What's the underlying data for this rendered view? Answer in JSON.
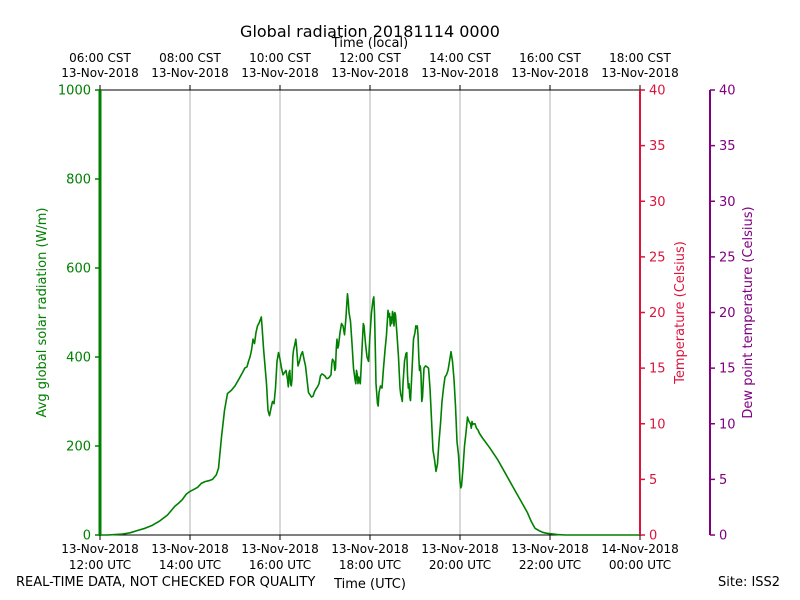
{
  "page": {
    "title": "Global radiation 20181114 0000",
    "footer_note": "REAL-TIME DATA, NOT CHECKED FOR QUALITY",
    "site": "Site: ISS2"
  },
  "chart_data": {
    "type": "line",
    "title": "Global radiation 20181114 0000",
    "xlabel": "Time (UTC)",
    "x2label": "Time (local)",
    "x_range": [
      "2018-11-13 12:00",
      "2018-11-14 00:00"
    ],
    "x_ticks_utc": [
      [
        "13-Nov-2018",
        "12:00 UTC"
      ],
      [
        "13-Nov-2018",
        "14:00 UTC"
      ],
      [
        "13-Nov-2018",
        "16:00 UTC"
      ],
      [
        "13-Nov-2018",
        "18:00 UTC"
      ],
      [
        "13-Nov-2018",
        "20:00 UTC"
      ],
      [
        "13-Nov-2018",
        "22:00 UTC"
      ],
      [
        "14-Nov-2018",
        "00:00 UTC"
      ]
    ],
    "x_ticks_local": [
      [
        "06:00 CST",
        "13-Nov-2018"
      ],
      [
        "08:00 CST",
        "13-Nov-2018"
      ],
      [
        "10:00 CST",
        "13-Nov-2018"
      ],
      [
        "12:00 CST",
        "13-Nov-2018"
      ],
      [
        "14:00 CST",
        "13-Nov-2018"
      ],
      [
        "16:00 CST",
        "13-Nov-2018"
      ],
      [
        "18:00 CST",
        "13-Nov-2018"
      ]
    ],
    "grid": "vertical",
    "axes": {
      "y_left": {
        "label": "Avg global solar radiation (W/m)",
        "range": [
          0,
          1000
        ],
        "ticks": [
          "0",
          "200",
          "400",
          "600",
          "800",
          "1000"
        ],
        "color": "#008000"
      },
      "y_right1": {
        "label": "Temperature (Celsius)",
        "range": [
          0,
          40
        ],
        "ticks": [
          "0",
          "5",
          "10",
          "15",
          "20",
          "25",
          "30",
          "35",
          "40"
        ],
        "color": "#dc143c"
      },
      "y_right2": {
        "label": "Dew point temperature (Celsius)",
        "range": [
          0,
          40
        ],
        "ticks": [
          "0",
          "5",
          "10",
          "15",
          "20",
          "25",
          "30",
          "35",
          "40"
        ],
        "color": "#800080"
      }
    },
    "series": [
      {
        "color": "#008000",
        "axis": "y_left",
        "points": [
          [
            "12:00",
            0
          ],
          [
            "12:10",
            0
          ],
          [
            "12:20",
            1
          ],
          [
            "12:30",
            2
          ],
          [
            "12:40",
            5
          ],
          [
            "12:50",
            10
          ],
          [
            "13:00",
            15
          ],
          [
            "13:10",
            22
          ],
          [
            "13:20",
            32
          ],
          [
            "13:30",
            45
          ],
          [
            "13:35",
            55
          ],
          [
            "13:40",
            65
          ],
          [
            "13:45",
            72
          ],
          [
            "13:50",
            80
          ],
          [
            "13:55",
            92
          ],
          [
            "14:00",
            98
          ],
          [
            "14:10",
            107
          ],
          [
            "14:15",
            116
          ],
          [
            "14:20",
            120
          ],
          [
            "14:25",
            122
          ],
          [
            "14:30",
            125
          ],
          [
            "14:35",
            135
          ],
          [
            "14:38",
            150
          ],
          [
            "14:42",
            220
          ],
          [
            "14:46",
            280
          ],
          [
            "14:50",
            318
          ],
          [
            "14:55",
            325
          ],
          [
            "15:00",
            335
          ],
          [
            "15:05",
            350
          ],
          [
            "15:10",
            365
          ],
          [
            "15:13",
            375
          ],
          [
            "15:16",
            378
          ],
          [
            "15:18",
            390
          ],
          [
            "15:20",
            400
          ],
          [
            "15:22",
            415
          ],
          [
            "15:24",
            440
          ],
          [
            "15:26",
            430
          ],
          [
            "15:28",
            455
          ],
          [
            "15:30",
            470
          ],
          [
            "15:32",
            476
          ],
          [
            "15:34",
            485
          ],
          [
            "15:35",
            490
          ],
          [
            "15:36",
            470
          ],
          [
            "15:38",
            420
          ],
          [
            "15:40",
            380
          ],
          [
            "15:42",
            340
          ],
          [
            "15:44",
            280
          ],
          [
            "15:46",
            268
          ],
          [
            "15:48",
            285
          ],
          [
            "15:50",
            300
          ],
          [
            "15:52",
            295
          ],
          [
            "15:54",
            330
          ],
          [
            "15:56",
            390
          ],
          [
            "15:58",
            410
          ],
          [
            "16:00",
            395
          ],
          [
            "16:02",
            375
          ],
          [
            "16:04",
            360
          ],
          [
            "16:06",
            365
          ],
          [
            "16:08",
            370
          ],
          [
            "16:10",
            350
          ],
          [
            "16:11",
            333
          ],
          [
            "16:12",
            365
          ],
          [
            "16:13",
            370
          ],
          [
            "16:14",
            340
          ],
          [
            "16:15",
            335
          ],
          [
            "16:16",
            350
          ],
          [
            "16:17",
            400
          ],
          [
            "16:18",
            415
          ],
          [
            "16:20",
            430
          ],
          [
            "16:21",
            440
          ],
          [
            "16:22",
            425
          ],
          [
            "16:24",
            380
          ],
          [
            "16:26",
            390
          ],
          [
            "16:28",
            405
          ],
          [
            "16:30",
            412
          ],
          [
            "16:32",
            395
          ],
          [
            "16:34",
            380
          ],
          [
            "16:36",
            350
          ],
          [
            "16:38",
            320
          ],
          [
            "16:40",
            315
          ],
          [
            "16:42",
            310
          ],
          [
            "16:44",
            312
          ],
          [
            "16:46",
            322
          ],
          [
            "16:48",
            328
          ],
          [
            "16:50",
            333
          ],
          [
            "16:52",
            340
          ],
          [
            "16:54",
            358
          ],
          [
            "16:56",
            362
          ],
          [
            "16:58",
            360
          ],
          [
            "17:00",
            357
          ],
          [
            "17:02",
            352
          ],
          [
            "17:04",
            352
          ],
          [
            "17:06",
            355
          ],
          [
            "17:08",
            360
          ],
          [
            "17:09",
            385
          ],
          [
            "17:10",
            395
          ],
          [
            "17:12",
            390
          ],
          [
            "17:13",
            370
          ],
          [
            "17:14",
            375
          ],
          [
            "17:15",
            420
          ],
          [
            "17:16",
            440
          ],
          [
            "17:17",
            420
          ],
          [
            "17:18",
            425
          ],
          [
            "17:20",
            455
          ],
          [
            "17:22",
            475
          ],
          [
            "17:24",
            470
          ],
          [
            "17:26",
            450
          ],
          [
            "17:28",
            490
          ],
          [
            "17:29",
            520
          ],
          [
            "17:30",
            542
          ],
          [
            "17:31",
            525
          ],
          [
            "17:32",
            500
          ],
          [
            "17:34",
            480
          ],
          [
            "17:36",
            430
          ],
          [
            "17:38",
            375
          ],
          [
            "17:40",
            350
          ],
          [
            "17:41",
            340
          ],
          [
            "17:42",
            370
          ],
          [
            "17:43",
            360
          ],
          [
            "17:44",
            340
          ],
          [
            "17:45",
            355
          ],
          [
            "17:46",
            345
          ],
          [
            "17:47",
            340
          ],
          [
            "17:48",
            370
          ],
          [
            "17:50",
            440
          ],
          [
            "17:51",
            475
          ],
          [
            "17:52",
            470
          ],
          [
            "17:54",
            430
          ],
          [
            "17:56",
            400
          ],
          [
            "17:58",
            390
          ],
          [
            "18:00",
            450
          ],
          [
            "18:02",
            500
          ],
          [
            "18:04",
            528
          ],
          [
            "18:05",
            535
          ],
          [
            "18:06",
            500
          ],
          [
            "18:07",
            420
          ],
          [
            "18:08",
            340
          ],
          [
            "18:10",
            295
          ],
          [
            "18:11",
            290
          ],
          [
            "18:12",
            320
          ],
          [
            "18:14",
            335
          ],
          [
            "18:16",
            330
          ],
          [
            "18:18",
            375
          ],
          [
            "18:20",
            415
          ],
          [
            "18:22",
            450
          ],
          [
            "18:24",
            505
          ],
          [
            "18:25",
            490
          ],
          [
            "18:26",
            498
          ],
          [
            "18:27",
            470
          ],
          [
            "18:28",
            490
          ],
          [
            "18:29",
            475
          ],
          [
            "18:30",
            502
          ],
          [
            "18:31",
            495
          ],
          [
            "18:32",
            470
          ],
          [
            "18:33",
            500
          ],
          [
            "18:34",
            495
          ],
          [
            "18:36",
            450
          ],
          [
            "18:38",
            400
          ],
          [
            "18:40",
            330
          ],
          [
            "18:41",
            315
          ],
          [
            "18:42",
            310
          ],
          [
            "18:43",
            300
          ],
          [
            "18:44",
            340
          ],
          [
            "18:46",
            390
          ],
          [
            "18:48",
            408
          ],
          [
            "18:49",
            410
          ],
          [
            "18:50",
            360
          ],
          [
            "18:51",
            330
          ],
          [
            "18:52",
            340
          ],
          [
            "18:53",
            310
          ],
          [
            "18:54",
            302
          ],
          [
            "18:56",
            370
          ],
          [
            "18:58",
            440
          ],
          [
            "19:00",
            455
          ],
          [
            "19:01",
            470
          ],
          [
            "19:02",
            465
          ],
          [
            "19:03",
            470
          ],
          [
            "19:04",
            450
          ],
          [
            "19:05",
            400
          ],
          [
            "19:06",
            370
          ],
          [
            "19:07",
            380
          ],
          [
            "19:08",
            360
          ],
          [
            "19:09",
            300
          ],
          [
            "19:10",
            310
          ],
          [
            "19:12",
            375
          ],
          [
            "19:14",
            380
          ],
          [
            "19:16",
            378
          ],
          [
            "19:18",
            375
          ],
          [
            "19:20",
            330
          ],
          [
            "19:22",
            260
          ],
          [
            "19:24",
            190
          ],
          [
            "19:26",
            170
          ],
          [
            "19:28",
            143
          ],
          [
            "19:30",
            160
          ],
          [
            "19:32",
            210
          ],
          [
            "19:34",
            250
          ],
          [
            "19:36",
            300
          ],
          [
            "19:38",
            330
          ],
          [
            "19:40",
            355
          ],
          [
            "19:42",
            360
          ],
          [
            "19:44",
            370
          ],
          [
            "19:46",
            390
          ],
          [
            "19:48",
            412
          ],
          [
            "19:50",
            390
          ],
          [
            "19:52",
            350
          ],
          [
            "19:54",
            290
          ],
          [
            "19:56",
            210
          ],
          [
            "19:58",
            180
          ],
          [
            "19:59",
            150
          ],
          [
            "20:00",
            120
          ],
          [
            "20:01",
            106
          ],
          [
            "20:02",
            110
          ],
          [
            "20:04",
            150
          ],
          [
            "20:06",
            200
          ],
          [
            "20:08",
            230
          ],
          [
            "20:10",
            265
          ],
          [
            "20:12",
            255
          ],
          [
            "20:14",
            250
          ],
          [
            "20:15",
            240
          ],
          [
            "20:16",
            255
          ],
          [
            "20:17",
            248
          ],
          [
            "20:18",
            250
          ],
          [
            "20:20",
            250
          ],
          [
            "20:22",
            240
          ],
          [
            "20:24",
            236
          ],
          [
            "20:26",
            228
          ],
          [
            "20:30",
            218
          ],
          [
            "20:40",
            195
          ],
          [
            "20:50",
            170
          ],
          [
            "21:00",
            140
          ],
          [
            "21:10",
            110
          ],
          [
            "21:20",
            80
          ],
          [
            "21:25",
            65
          ],
          [
            "21:30",
            50
          ],
          [
            "21:35",
            30
          ],
          [
            "21:40",
            15
          ],
          [
            "21:45",
            10
          ],
          [
            "21:50",
            6
          ],
          [
            "21:55",
            4
          ],
          [
            "22:00",
            3
          ],
          [
            "22:10",
            1
          ],
          [
            "22:20",
            0
          ],
          [
            "22:40",
            0
          ],
          [
            "23:00",
            0
          ],
          [
            "23:40",
            0
          ],
          [
            "24:00",
            0
          ]
        ]
      }
    ]
  }
}
